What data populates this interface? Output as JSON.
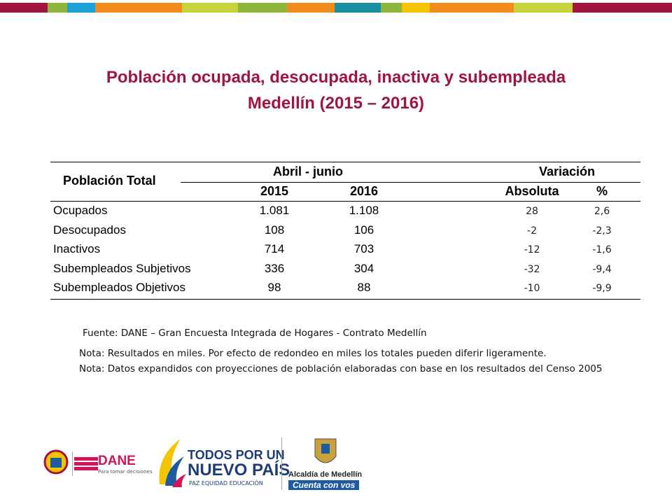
{
  "header": {
    "title_line1": "Población ocupada, desocupada, inactiva y subempleada",
    "title_line2": "Medellín (2015 – 2016)"
  },
  "table": {
    "header": {
      "label": "Población Total",
      "period": "Abril - junio",
      "variation": "Variación",
      "years": [
        "2015",
        "2016"
      ],
      "variation_cols": [
        "Absoluta",
        "%"
      ]
    },
    "rows": [
      [
        "Ocupados",
        "1.081",
        "1.108",
        "28",
        "2,6"
      ],
      [
        "Desocupados",
        "108",
        "106",
        "-2",
        "-2,3"
      ],
      [
        "Inactivos",
        "714",
        "703",
        "-12",
        "-1,6"
      ],
      [
        "Subempleados Subjetivos",
        "336",
        "304",
        "-32",
        "-9,4"
      ],
      [
        "Subempleados Objetivos",
        "98",
        "88",
        "-10",
        "-9,9"
      ]
    ]
  },
  "notes": {
    "source": "Fuente: DANE – Gran Encuesta Integrada de Hogares - Contrato Medellín",
    "note1": "Nota: Resultados en miles. Por efecto de redondeo en miles los totales pueden diferir ligeramente.",
    "note2": "Nota: Datos expandidos con proyecciones de población elaboradas con base en los resultados del Censo 2005"
  },
  "logos": {
    "dane": "DANE",
    "dane_tagline": "Para tomar decisiones",
    "todos1": "TODOS POR UN",
    "todos2": "NUEVO PAÍS",
    "todos3": "PAZ  EQUIDAD  EDUCACIÓN",
    "alcaldia": "Alcaldía de Medellín",
    "cuenta": "Cuenta con vos"
  }
}
